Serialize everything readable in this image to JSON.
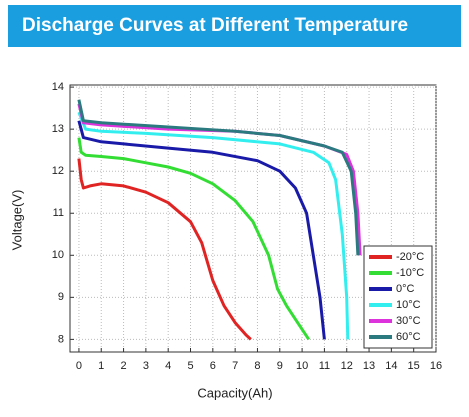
{
  "chart_data": {
    "type": "line",
    "title": "Discharge Curves at Different Temperature",
    "x_label": "Capacity(Ah)",
    "y_label": "Voltage(V)",
    "xlim": [
      -0.4,
      16
    ],
    "ylim": [
      7.7,
      14.05
    ],
    "xticks": [
      0,
      1,
      2,
      3,
      4,
      5,
      6,
      7,
      8,
      9,
      10,
      11,
      12,
      13,
      14,
      15,
      16
    ],
    "yticks": [
      8,
      9,
      10,
      11,
      12,
      13,
      14
    ],
    "grid": true,
    "legend": "lower right",
    "series": [
      {
        "name": "-20°C",
        "color": "#e02424",
        "x": [
          0,
          0.1,
          0.2,
          0.5,
          1,
          2,
          3,
          4,
          5,
          5.5,
          6,
          6.5,
          7,
          7.5,
          7.7
        ],
        "values": [
          12.3,
          11.8,
          11.6,
          11.65,
          11.7,
          11.65,
          11.5,
          11.25,
          10.8,
          10.3,
          9.4,
          8.8,
          8.4,
          8.1,
          8.0
        ]
      },
      {
        "name": "-10°C",
        "color": "#33dd33",
        "x": [
          0,
          0.1,
          0.3,
          1,
          2,
          3,
          4,
          5,
          6,
          7,
          7.8,
          8.5,
          8.9,
          9.3,
          9.8,
          10.3
        ],
        "values": [
          12.8,
          12.45,
          12.38,
          12.35,
          12.3,
          12.2,
          12.1,
          11.95,
          11.7,
          11.3,
          10.8,
          10.0,
          9.2,
          8.8,
          8.4,
          8.0
        ]
      },
      {
        "name": "0°C",
        "color": "#1a1aa8",
        "x": [
          0,
          0.2,
          1,
          2,
          4,
          6,
          8,
          9,
          9.7,
          10.2,
          10.5,
          10.8,
          11
        ],
        "values": [
          13.2,
          12.8,
          12.7,
          12.65,
          12.55,
          12.45,
          12.25,
          12.0,
          11.6,
          11.0,
          10.0,
          9.0,
          8.0
        ]
      },
      {
        "name": "10°C",
        "color": "#33eeee",
        "x": [
          0,
          0.3,
          1,
          3,
          6,
          9,
          10.5,
          11.2,
          11.5,
          11.8,
          12,
          12.05
        ],
        "values": [
          13.4,
          13.0,
          12.95,
          12.9,
          12.8,
          12.65,
          12.45,
          12.2,
          11.8,
          10.5,
          9.0,
          8.0
        ]
      },
      {
        "name": "30°C",
        "color": "#dd33dd",
        "x": [
          0,
          0.2,
          1,
          4,
          7,
          9,
          11,
          12,
          12.3,
          12.5,
          12.6
        ],
        "values": [
          13.6,
          13.15,
          13.1,
          13.0,
          12.95,
          12.85,
          12.6,
          12.4,
          12.0,
          11.0,
          10.0
        ]
      },
      {
        "name": "60°C",
        "color": "#2a7a80",
        "x": [
          0,
          0.2,
          1,
          4,
          7,
          9,
          11,
          11.8,
          12.2,
          12.4,
          12.5
        ],
        "values": [
          13.7,
          13.2,
          13.15,
          13.05,
          12.95,
          12.85,
          12.6,
          12.45,
          12.0,
          11.0,
          10.0
        ]
      }
    ]
  }
}
